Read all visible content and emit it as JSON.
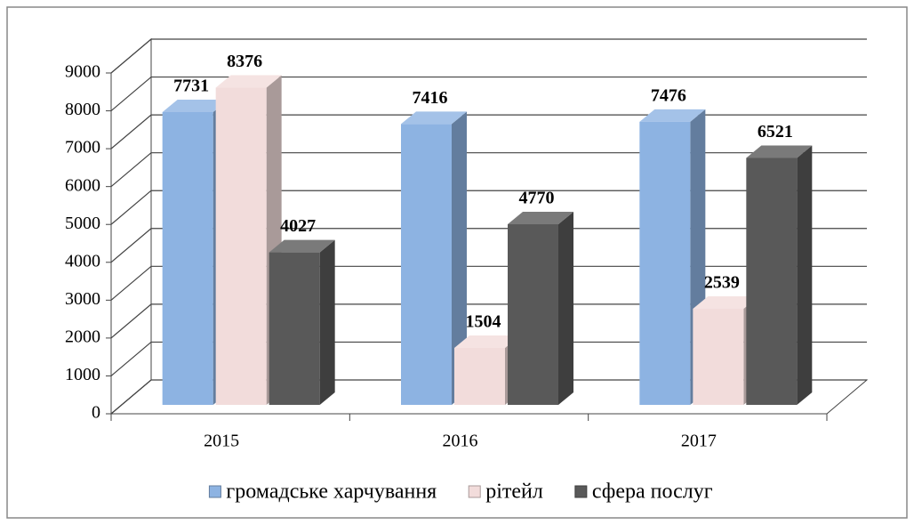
{
  "chart_data": {
    "type": "bar3d",
    "categories": [
      "2015",
      "2016",
      "2017"
    ],
    "series": [
      {
        "name": "громадське харчування",
        "color": "#8db3e2",
        "values": [
          7731,
          7416,
          7476
        ]
      },
      {
        "name": "рітейл",
        "color": "#f2dcdb",
        "values": [
          8376,
          1504,
          2539
        ]
      },
      {
        "name": "сфера послуг",
        "color": "#595959",
        "values": [
          4027,
          4770,
          6521
        ]
      }
    ],
    "ylim": [
      0,
      9000
    ],
    "yticks": [
      0,
      1000,
      2000,
      3000,
      4000,
      5000,
      6000,
      7000,
      8000,
      9000
    ],
    "grid": true,
    "legend": "bottom"
  }
}
